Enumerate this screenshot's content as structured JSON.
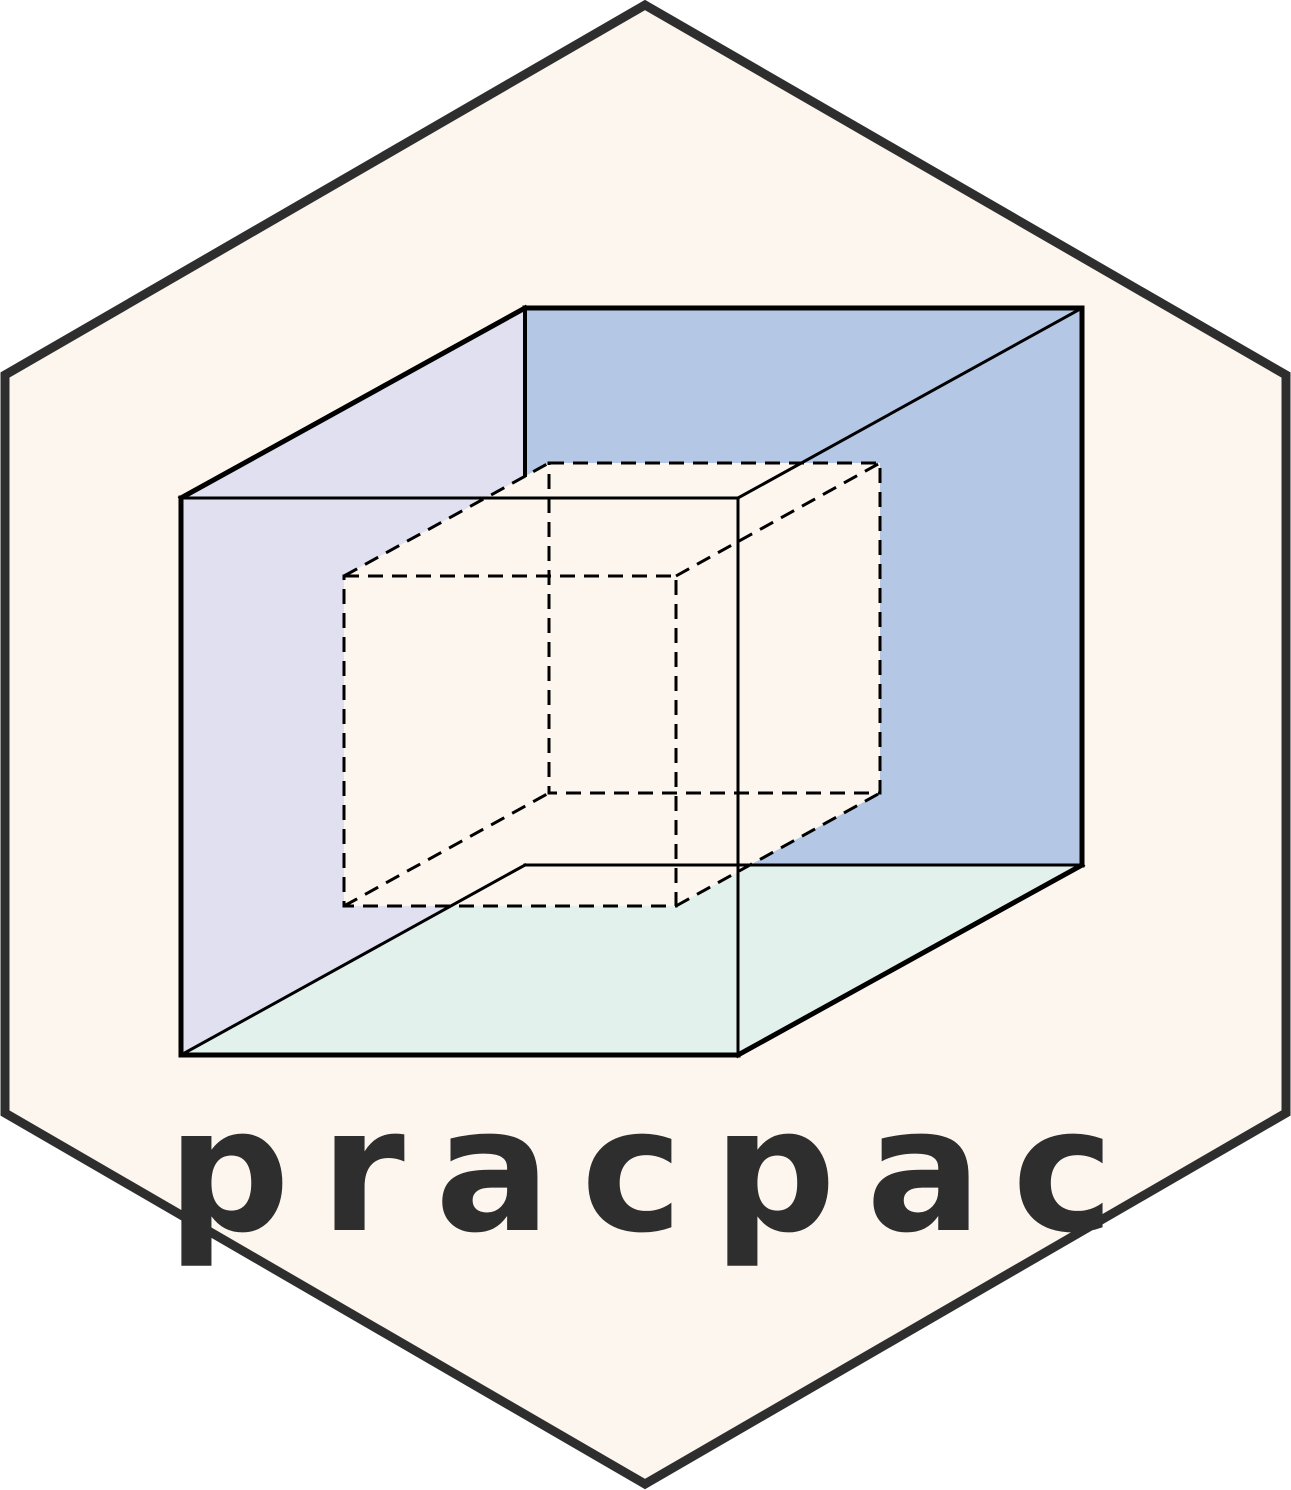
{
  "logo": {
    "name": "pracpac"
  },
  "colors": {
    "hex_fill": "#fdf6ee",
    "hex_stroke": "#2e2e2e",
    "left_face": "#e0e0f0",
    "back_face": "#b4c8e6",
    "bottom_face": "#e2f1ec",
    "inner_cube_fill": "#fdf6ee",
    "edge": "#000000",
    "wordmark": "#2e2e2e"
  }
}
